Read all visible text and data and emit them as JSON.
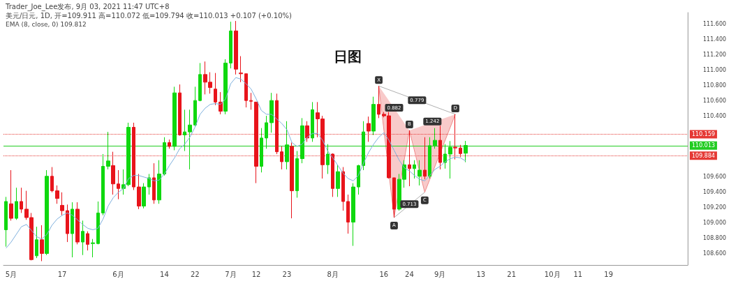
{
  "chart_data": {
    "type": "candlestick",
    "title": "日图",
    "categories": [
      null,
      "5月",
      null,
      null,
      null,
      null,
      null,
      null,
      null,
      null,
      null,
      "17",
      null,
      null,
      null,
      null,
      null,
      null,
      null,
      null,
      null,
      null,
      "6月",
      null,
      null,
      null,
      null,
      null,
      null,
      null,
      null,
      "14",
      null,
      null,
      null,
      null,
      null,
      "22",
      null,
      null,
      null,
      null,
      null,
      null,
      "7月",
      null,
      null,
      null,
      null,
      "12",
      null,
      null,
      null,
      null,
      null,
      "23",
      null,
      null,
      null,
      null,
      null,
      null,
      null,
      null,
      "8月",
      null,
      null,
      null,
      null,
      null,
      null,
      null,
      null,
      null,
      "16",
      null,
      null,
      null,
      null,
      "24",
      null,
      null,
      null,
      null,
      null,
      "9月",
      null,
      null,
      null,
      null,
      null,
      null,
      null,
      "13",
      null,
      null,
      null,
      null,
      null,
      "21",
      null,
      null,
      null,
      null,
      null,
      null,
      null,
      "10月",
      null,
      null,
      null,
      null,
      "11",
      null,
      null,
      null,
      null,
      null,
      "19",
      null,
      null,
      null,
      null,
      null,
      null,
      null,
      null,
      null,
      null,
      null,
      null,
      null,
      null,
      null
    ],
    "series": [
      {
        "ohlc": [
          [
            108.91,
            109.34,
            108.69,
            109.28
          ],
          [
            109.25,
            109.69,
            109.03,
            109.06
          ],
          [
            109.06,
            109.46,
            109.04,
            109.28
          ],
          [
            109.28,
            109.46,
            109.13,
            109.18
          ],
          [
            109.18,
            109.42,
            109.04,
            109.07
          ],
          [
            109.07,
            109.13,
            108.51,
            108.52
          ],
          [
            108.57,
            108.95,
            108.54,
            108.78
          ],
          [
            108.78,
            108.97,
            108.5,
            108.6
          ],
          [
            108.6,
            109.69,
            108.58,
            109.61
          ],
          [
            109.61,
            109.73,
            109.4,
            109.42
          ],
          [
            109.42,
            109.49,
            109.25,
            109.32
          ],
          [
            109.23,
            109.4,
            109.1,
            109.16
          ],
          [
            109.16,
            109.24,
            108.75,
            108.86
          ],
          [
            108.86,
            109.27,
            108.55,
            109.18
          ],
          [
            109.18,
            109.27,
            108.72,
            108.75
          ],
          [
            108.75,
            109.03,
            108.58,
            108.89
          ],
          [
            108.86,
            108.89,
            108.64,
            108.72
          ],
          [
            108.73,
            108.79,
            108.55,
            108.74
          ],
          [
            108.73,
            109.28,
            108.72,
            109.13
          ],
          [
            109.13,
            109.9,
            109.1,
            109.74
          ],
          [
            109.74,
            110.19,
            109.7,
            109.81
          ],
          [
            109.75,
            109.93,
            109.37,
            109.51
          ],
          [
            109.51,
            109.69,
            109.31,
            109.45
          ],
          [
            109.45,
            109.7,
            109.37,
            109.5
          ],
          [
            109.5,
            110.31,
            109.48,
            110.25
          ],
          [
            110.25,
            110.31,
            109.43,
            109.47
          ],
          [
            109.47,
            109.64,
            109.18,
            109.22
          ],
          [
            109.22,
            109.52,
            109.19,
            109.47
          ],
          [
            109.47,
            109.64,
            109.37,
            109.59
          ],
          [
            109.59,
            109.78,
            109.25,
            109.3
          ],
          [
            109.3,
            109.82,
            109.25,
            109.64
          ],
          [
            109.64,
            110.12,
            109.62,
            110.05
          ],
          [
            110.05,
            110.09,
            109.97,
            110.0
          ],
          [
            110.0,
            110.78,
            109.95,
            110.7
          ],
          [
            110.7,
            110.81,
            110.14,
            110.15
          ],
          [
            110.15,
            110.48,
            109.94,
            110.19
          ],
          [
            110.19,
            110.48,
            109.7,
            110.28
          ],
          [
            110.28,
            110.78,
            110.26,
            110.6
          ],
          [
            110.6,
            111.09,
            110.59,
            110.94
          ],
          [
            110.94,
            111.11,
            110.68,
            110.84
          ],
          [
            110.84,
            110.97,
            110.69,
            110.77
          ],
          [
            110.75,
            110.96,
            110.54,
            110.58
          ],
          [
            110.58,
            110.71,
            110.42,
            110.46
          ],
          [
            110.46,
            111.14,
            110.42,
            111.09
          ],
          [
            111.09,
            111.63,
            111.02,
            111.51
          ],
          [
            111.51,
            111.64,
            110.94,
            111.01
          ],
          [
            110.96,
            111.18,
            110.84,
            110.95
          ],
          [
            110.95,
            110.95,
            110.51,
            110.6
          ],
          [
            110.6,
            110.7,
            110.48,
            110.59
          ],
          [
            110.58,
            110.58,
            109.52,
            109.74
          ],
          [
            109.74,
            110.24,
            109.66,
            110.11
          ],
          [
            110.11,
            110.4,
            109.97,
            110.31
          ],
          [
            110.31,
            110.7,
            110.18,
            110.6
          ],
          [
            110.6,
            110.69,
            109.9,
            109.93
          ],
          [
            109.93,
            110.0,
            109.7,
            109.8
          ],
          [
            109.8,
            110.33,
            109.7,
            110.02
          ],
          [
            110.0,
            110.05,
            109.06,
            109.42
          ],
          [
            109.42,
            109.94,
            109.33,
            109.84
          ],
          [
            109.84,
            110.37,
            109.78,
            110.27
          ],
          [
            110.27,
            110.33,
            110.06,
            110.11
          ],
          [
            110.11,
            110.58,
            110.06,
            110.48
          ],
          [
            110.44,
            110.58,
            110.12,
            110.36
          ],
          [
            110.36,
            110.4,
            109.58,
            109.76
          ],
          [
            109.76,
            110.03,
            109.64,
            109.9
          ],
          [
            109.9,
            109.91,
            109.34,
            109.45
          ],
          [
            109.45,
            109.76,
            109.34,
            109.67
          ],
          [
            109.67,
            109.73,
            109.16,
            109.28
          ],
          [
            109.28,
            109.37,
            108.86,
            109.01
          ],
          [
            109.01,
            109.52,
            108.7,
            109.47
          ],
          [
            109.47,
            109.76,
            109.37,
            109.75
          ],
          [
            109.75,
            110.33,
            109.69,
            110.19
          ],
          [
            110.3,
            110.39,
            110.06,
            110.2
          ],
          [
            110.2,
            110.65,
            110.15,
            110.55
          ],
          [
            110.55,
            110.79,
            110.37,
            110.42
          ],
          [
            110.42,
            110.45,
            110.38,
            110.4
          ],
          [
            110.4,
            110.45,
            109.58,
            109.59
          ],
          [
            109.59,
            109.59,
            109.07,
            109.18
          ],
          [
            109.18,
            109.64,
            109.16,
            109.57
          ],
          [
            109.57,
            109.82,
            109.46,
            109.76
          ],
          [
            109.76,
            110.21,
            109.48,
            109.71
          ],
          [
            109.71,
            109.82,
            109.58,
            109.76
          ],
          [
            109.61,
            109.82,
            109.49,
            109.69
          ],
          [
            109.69,
            110.12,
            109.57,
            109.61
          ],
          [
            109.61,
            110.12,
            109.58,
            110.01
          ],
          [
            110.01,
            110.24,
            109.97,
            110.08
          ],
          [
            110.08,
            110.27,
            109.7,
            109.79
          ],
          [
            109.79,
            110.03,
            109.71,
            109.9
          ],
          [
            109.9,
            110.07,
            109.58,
            109.99
          ],
          [
            109.99,
            110.42,
            109.83,
            109.98
          ],
          [
            109.98,
            110.02,
            109.86,
            109.906
          ],
          [
            109.911,
            110.072,
            109.794,
            110.013
          ],
          null,
          null,
          null,
          null,
          null,
          null,
          null,
          null,
          null,
          null,
          null,
          null,
          null,
          null,
          null,
          null,
          null,
          null,
          null,
          null,
          null,
          null,
          null,
          null,
          null,
          null,
          null,
          null,
          null,
          null,
          null,
          null,
          null,
          null,
          null,
          null,
          null,
          null,
          null,
          null,
          null,
          null,
          null
        ],
        "colors": [
          "#0fd80f",
          "#e8141b",
          "#0fd80f",
          "#e8141b",
          "#e8141b",
          "#e8141b",
          "#0fd80f",
          "#e8141b",
          "#0fd80f",
          "#e8141b",
          "#e8141b",
          "#e8141b",
          "#e8141b",
          "#0fd80f",
          "#e8141b",
          "#0fd80f",
          "#e8141b",
          "#0fd80f",
          "#0fd80f",
          "#0fd80f",
          "#0fd80f",
          "#e8141b",
          "#e8141b",
          "#0fd80f",
          "#0fd80f",
          "#e8141b",
          "#e8141b",
          "#0fd80f",
          "#0fd80f",
          "#e8141b",
          "#0fd80f",
          "#0fd80f",
          "#e8141b",
          "#0fd80f",
          "#e8141b",
          "#0fd80f",
          "#0fd80f",
          "#0fd80f",
          "#0fd80f",
          "#e8141b",
          "#e8141b",
          "#e8141b",
          "#e8141b",
          "#0fd80f",
          "#0fd80f",
          "#e8141b",
          "#e8141b",
          "#e8141b",
          "#e8141b",
          "#e8141b",
          "#0fd80f",
          "#0fd80f",
          "#0fd80f",
          "#e8141b",
          "#e8141b",
          "#0fd80f",
          "#e8141b",
          "#0fd80f",
          "#0fd80f",
          "#e8141b",
          "#0fd80f",
          "#e8141b",
          "#e8141b",
          "#0fd80f",
          "#e8141b",
          "#0fd80f",
          "#e8141b",
          "#e8141b",
          "#0fd80f",
          "#0fd80f",
          "#0fd80f",
          "#e8141b",
          "#0fd80f",
          "#e8141b",
          "#e8141b",
          "#e8141b",
          "#e8141b",
          "#0fd80f",
          "#0fd80f",
          "#e8141b",
          "#0fd80f",
          "#0fd80f",
          "#e8141b",
          "#0fd80f",
          "#0fd80f",
          "#e8141b",
          "#0fd80f",
          "#0fd80f",
          "#e8141b",
          "#e8141b",
          "#0fd80f",
          null,
          null,
          null,
          null,
          null,
          null,
          null,
          null,
          null,
          null,
          null,
          null,
          null,
          null,
          null,
          null,
          null,
          null,
          null,
          null,
          null,
          null,
          null,
          null,
          null,
          null,
          null,
          null,
          null,
          null,
          null,
          null,
          null,
          null,
          null,
          null,
          null,
          null,
          null,
          null,
          null,
          null,
          null
        ]
      },
      {
        "type": "line",
        "color": "#7fb0dd",
        "values": [
          108.67,
          108.75,
          108.85,
          108.95,
          108.98,
          108.9,
          108.82,
          108.79,
          108.85,
          108.97,
          109.05,
          109.1,
          109.13,
          109.1,
          109.04,
          108.98,
          108.93,
          108.91,
          108.93,
          109.05,
          109.22,
          109.33,
          109.4,
          109.45,
          109.58,
          109.62,
          109.62,
          109.6,
          109.58,
          109.55,
          109.56,
          109.64,
          109.75,
          109.85,
          109.97,
          110.03,
          110.12,
          110.25,
          110.42,
          110.5,
          110.55,
          110.56,
          110.55,
          110.62,
          110.82,
          110.9,
          110.88,
          110.82,
          110.75,
          110.62,
          110.47,
          110.42,
          110.42,
          110.36,
          110.3,
          110.22,
          110.05,
          110.0,
          110.03,
          110.12,
          110.17,
          110.17,
          110.08,
          109.94,
          109.85,
          109.75,
          109.65,
          109.58,
          109.55,
          109.62,
          109.78,
          109.92,
          110.03,
          110.12,
          110.18,
          110.08,
          109.95,
          109.82,
          109.72,
          109.68,
          109.62,
          109.57,
          109.55,
          109.62,
          109.7,
          109.74,
          109.8,
          109.84,
          109.86,
          109.85,
          109.81,
          null,
          null,
          null,
          null,
          null,
          null,
          null,
          null,
          null,
          null,
          null,
          null,
          null,
          null,
          null,
          null,
          null,
          null,
          null,
          null,
          null,
          null,
          null,
          null,
          null,
          null,
          null,
          null,
          null,
          null,
          null,
          null,
          null,
          null,
          null,
          null,
          null,
          null,
          null,
          null,
          null,
          null,
          null
        ]
      },
      {
        "type": "line",
        "color": "#ef8a8a",
        "values": [
          null,
          null,
          null,
          null,
          null,
          null,
          null,
          null,
          null,
          null,
          null,
          null,
          null,
          null,
          null,
          null,
          null,
          null,
          null,
          null,
          null,
          null,
          null,
          null,
          null,
          null,
          null,
          null,
          null,
          null,
          null,
          null,
          null,
          null,
          null,
          null,
          null,
          null,
          null,
          null,
          null,
          null,
          null,
          null,
          null,
          null,
          null,
          null,
          null,
          null,
          null,
          null,
          null,
          null,
          null,
          null,
          null,
          null,
          null,
          null,
          null,
          null,
          null,
          null,
          null,
          null,
          null,
          null,
          null,
          null,
          null,
          null,
          null,
          110.79,
          null,
          null,
          109.07,
          null,
          null,
          110.21,
          null,
          null,
          109.4,
          null,
          null,
          null,
          null,
          null,
          110.42,
          null,
          null,
          null,
          null,
          null,
          null,
          null,
          null,
          null,
          null,
          null,
          null,
          null,
          null,
          null,
          null,
          null,
          null,
          null,
          null,
          null,
          null,
          null,
          null,
          null,
          null,
          null,
          null,
          null,
          null,
          null,
          null,
          null,
          null,
          null,
          null,
          null,
          null,
          null,
          null,
          null,
          null,
          null,
          null,
          null
        ]
      }
    ],
    "ylim": [
      108.45,
      111.75
    ],
    "yticks": [
      {
        "value": 108.6,
        "label": "108.600"
      },
      {
        "value": 108.8,
        "label": "108.800"
      },
      {
        "value": 109.0,
        "label": "109.000"
      },
      {
        "value": 109.2,
        "label": "109.200"
      },
      {
        "value": 109.4,
        "label": "109.400"
      },
      {
        "value": 109.6,
        "label": "109.600"
      },
      {
        "value": 110.4,
        "label": "110.400"
      },
      {
        "value": 110.6,
        "label": "110.600"
      },
      {
        "value": 110.8,
        "label": "110.800"
      },
      {
        "value": 111.0,
        "label": "111.000"
      },
      {
        "value": 111.2,
        "label": "111.200"
      },
      {
        "value": 111.4,
        "label": "111.400"
      },
      {
        "value": 111.6,
        "label": "111.600"
      }
    ],
    "ref_lines": [
      {
        "axis": "y",
        "value": 110.159,
        "label": "110.159",
        "color": "#e53935",
        "line_style": "dotted"
      },
      {
        "axis": "y",
        "value": 110.013,
        "label": "110.013",
        "color": "#22cc22",
        "line_style": "solid"
      },
      {
        "axis": "y",
        "value": 109.884,
        "label": "109.884",
        "color": "#e53935",
        "line_style": "dotted"
      }
    ],
    "annotations": [
      "Trader_Joe_Lee发布, 9月 03, 2021 11:47 UTC+8",
      "美元/日元, 1D, 开=109.911 高=110.072 低=109.794 收=110.013 +0.107 (+0.10%)",
      "EMA (8, close, 0) 109.812",
      {
        "text": "X",
        "y": 110.79
      },
      {
        "text": "A",
        "y": 109.07
      },
      {
        "text": "B",
        "y": 110.21
      },
      {
        "text": "C",
        "y": 109.4
      },
      {
        "text": "D",
        "y": 110.42
      },
      {
        "text": "0.882",
        "y": 110.5
      },
      {
        "text": "0.779",
        "y": 110.6
      },
      {
        "text": "1.242",
        "y": 110.32
      },
      {
        "text": "0.713",
        "y": 109.24
      }
    ],
    "grid": false
  }
}
